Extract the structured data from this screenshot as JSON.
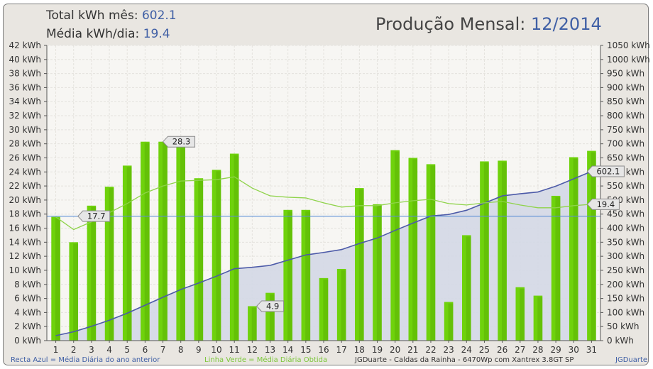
{
  "header": {
    "total_label": "Total kWh mês:",
    "total_value": "602.1",
    "avg_label": "Média kWh/dia:",
    "avg_value": "19.4",
    "title_label": "Produção Mensal:",
    "title_value": "12/2014"
  },
  "footer": {
    "blue_note": "Recta Azul = Média Diária do ano anterior",
    "green_note": "Linha Verde = Média Diária Obtida",
    "system_info": "JGDuarte  -  Caldas da Rainha  -  6470Wp com Xantrex 3.8GT SP",
    "brand": "JGDuarte"
  },
  "chart_data": {
    "type": "bar",
    "categories": [
      "1",
      "2",
      "3",
      "4",
      "5",
      "6",
      "7",
      "8",
      "9",
      "10",
      "11",
      "12",
      "13",
      "14",
      "15",
      "16",
      "17",
      "18",
      "19",
      "20",
      "21",
      "22",
      "23",
      "24",
      "25",
      "26",
      "27",
      "28",
      "29",
      "30",
      "31"
    ],
    "values": [
      17.6,
      14.0,
      19.2,
      21.9,
      24.9,
      28.3,
      28.3,
      27.6,
      23.1,
      24.3,
      26.6,
      4.9,
      6.8,
      18.6,
      18.6,
      8.9,
      10.2,
      21.7,
      19.4,
      27.1,
      26.0,
      25.1,
      5.5,
      15.0,
      25.5,
      25.6,
      7.6,
      6.4,
      20.6,
      26.1,
      27.0
    ],
    "cumulative_kwh": [
      17.6,
      31.6,
      50.8,
      72.7,
      97.6,
      125.9,
      154.2,
      181.8,
      204.9,
      229.2,
      255.8,
      260.7,
      267.5,
      286.1,
      304.7,
      313.6,
      323.8,
      345.5,
      364.9,
      392.0,
      418.0,
      443.1,
      448.6,
      463.6,
      489.1,
      514.7,
      522.3,
      528.7,
      549.3,
      575.4,
      602.1
    ],
    "running_average": [
      17.6,
      15.8,
      16.9,
      18.2,
      19.5,
      21.0,
      22.0,
      22.7,
      22.8,
      22.9,
      23.3,
      21.7,
      20.6,
      20.4,
      20.3,
      19.6,
      19.0,
      19.2,
      19.2,
      19.6,
      19.9,
      20.1,
      19.5,
      19.3,
      19.6,
      19.8,
      19.3,
      18.9,
      18.9,
      19.2,
      19.4
    ],
    "reference_line": 17.7,
    "left_axis": {
      "min": 0,
      "max": 42,
      "step": 2,
      "unit": "kWh"
    },
    "right_axis": {
      "min": 0,
      "max": 1050,
      "step": 50,
      "unit": "kWh"
    },
    "callouts": [
      {
        "day": 7,
        "text": "28.3"
      },
      {
        "day": 12,
        "text": "4.9"
      },
      {
        "day": 2,
        "text": "17.7"
      },
      {
        "day": 31,
        "text": "602.1"
      },
      {
        "day": 31,
        "text": "19.4"
      }
    ],
    "colors": {
      "bar": "#6fd20c",
      "bar_shadow": "#4fa400",
      "cumulative_line": "#4c5aa8",
      "cumulative_fill": "#d3d8e6",
      "average_line": "#8fd34a",
      "reference_line": "#5b8fd6",
      "plot_bg": "#f7f6f3"
    },
    "grid": true
  }
}
